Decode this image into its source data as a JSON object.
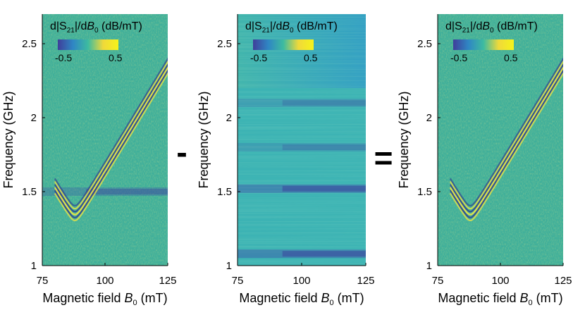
{
  "chart_data": [
    {
      "type": "heatmap",
      "panel": "measured",
      "xlabel": "Magnetic field",
      "xlabel_symbol": "B",
      "xlabel_subscript": "0",
      "xlabel_unit": " (mT)",
      "ylabel": "Frequency (GHz)",
      "xlim": [
        75,
        125
      ],
      "ylim": [
        1,
        2.7
      ],
      "x_ticks": [
        75,
        100,
        125
      ],
      "y_ticks": [
        1,
        1.5,
        2,
        2.5
      ],
      "colorbar": {
        "title_prefix": "d|S",
        "title_sub": "21",
        "title_mid": "|/d",
        "title_symbol": "B",
        "title_symbol_sub": "0",
        "title_unit": " (dB/mT)",
        "min_label": "-0.5",
        "max_label": "0.5",
        "range": [
          -0.5,
          0.5
        ],
        "colors": [
          "#3f3f9a",
          "#2f86c4",
          "#3dbba0",
          "#f0d93a",
          "#f5f31a"
        ]
      },
      "features": {
        "mode_curve": {
          "B_min": 88,
          "f_min": 1.3,
          "slope_GHz_per_mT": 0.028
        },
        "background_bands_GHz": [
          1.5
        ]
      },
      "background_color": "#3faf9a"
    },
    {
      "type": "heatmap",
      "panel": "background",
      "xlabel": "Magnetic field",
      "xlabel_symbol": "B",
      "xlabel_subscript": "0",
      "xlabel_unit": " (mT)",
      "ylabel": "Frequency (GHz)",
      "xlim": [
        75,
        125
      ],
      "ylim": [
        1,
        2.7
      ],
      "x_ticks": [
        75,
        100,
        125
      ],
      "y_ticks": [
        1,
        1.5,
        2,
        2.5
      ],
      "colorbar": {
        "title_prefix": "d|S",
        "title_sub": "21",
        "title_mid": "|/d",
        "title_symbol": "B",
        "title_symbol_sub": "0",
        "title_unit": " (dB/mT)",
        "min_label": "-0.5",
        "max_label": "0.5",
        "range": [
          -0.5,
          0.5
        ]
      },
      "features": {
        "background_bands_GHz": [
          1.08,
          1.52,
          1.8,
          2.1
        ]
      },
      "background_color": "#3cb3b4"
    },
    {
      "type": "heatmap",
      "panel": "difference",
      "xlabel": "Magnetic field",
      "xlabel_symbol": "B",
      "xlabel_subscript": "0",
      "xlabel_unit": " (mT)",
      "ylabel": "Frequency (GHz)",
      "xlim": [
        75,
        125
      ],
      "ylim": [
        1,
        2.7
      ],
      "x_ticks": [
        75,
        100,
        125
      ],
      "y_ticks": [
        1,
        1.5,
        2,
        2.5
      ],
      "colorbar": {
        "title_prefix": "d|S",
        "title_sub": "21",
        "title_mid": "|/d",
        "title_symbol": "B",
        "title_symbol_sub": "0",
        "title_unit": " (dB/mT)",
        "min_label": "-0.5",
        "max_label": "0.5",
        "range": [
          -0.5,
          0.5
        ]
      },
      "features": {
        "mode_curve": {
          "B_min": 88,
          "f_min": 1.3,
          "slope_GHz_per_mT": 0.028
        }
      },
      "background_color": "#3faf9a"
    }
  ],
  "operators": {
    "minus": "-",
    "equals": "="
  }
}
